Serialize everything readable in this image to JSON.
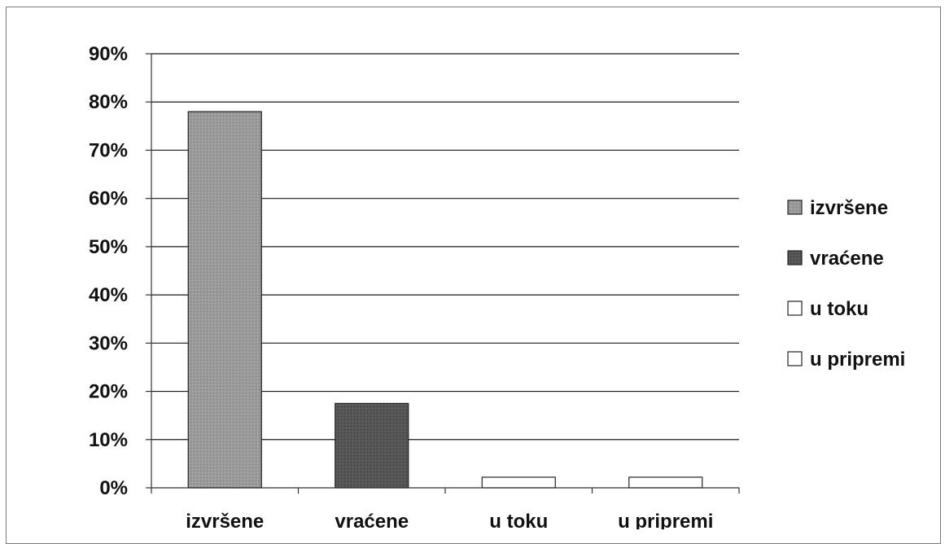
{
  "chart_data": {
    "type": "bar",
    "categories": [
      "izvršene",
      "vraćene",
      "u toku",
      "u pripremi"
    ],
    "values": [
      78,
      17.5,
      2.2,
      2.2
    ],
    "ylim": [
      0,
      90
    ],
    "yticks": [
      "0%",
      "10%",
      "20%",
      "30%",
      "40%",
      "50%",
      "60%",
      "70%",
      "80%",
      "90%"
    ],
    "grid": true,
    "legend_position": "right",
    "legend": [
      "izvršene",
      "vraćene",
      "u toku",
      "u pripremi"
    ],
    "colors": [
      "#9a9a9a",
      "#555555",
      "#ffffff",
      "#ffffff"
    ]
  }
}
